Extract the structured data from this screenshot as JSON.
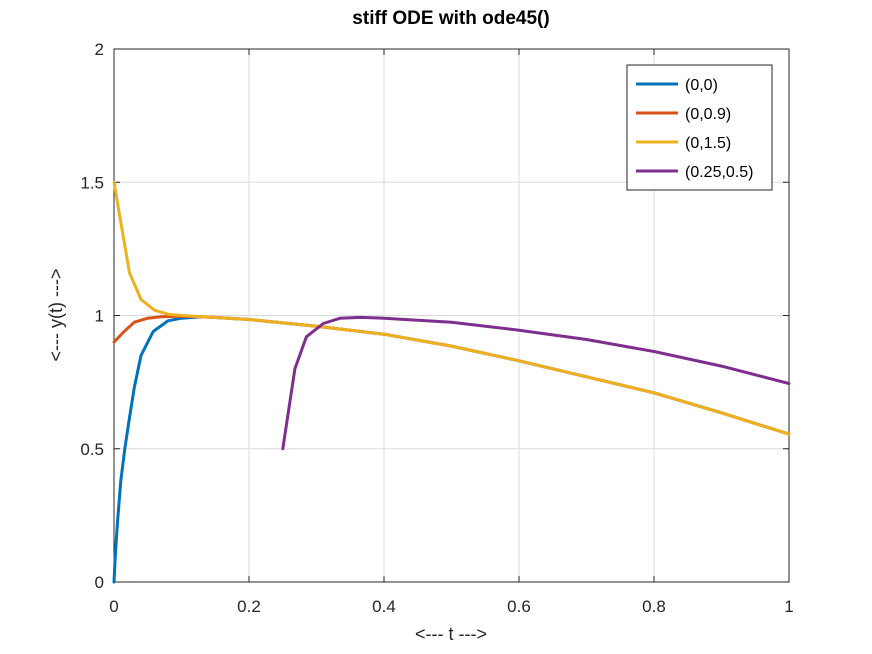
{
  "chart_data": {
    "type": "line",
    "title": "stiff ODE with ode45()",
    "xlabel": "<---  t  --->",
    "ylabel": "<---  y(t)  --->",
    "xlim": [
      0,
      1
    ],
    "ylim": [
      0,
      2
    ],
    "xticks": [
      "0",
      "0.2",
      "0.4",
      "0.6",
      "0.8",
      "1"
    ],
    "yticks": [
      "0",
      "0.5",
      "1",
      "1.5",
      "2"
    ],
    "grid": true,
    "legend_position": "top-right",
    "series": [
      {
        "name": "(0,0)",
        "color": "#0072BD",
        "x": [
          0,
          0.002,
          0.005,
          0.01,
          0.016,
          0.022,
          0.03,
          0.04,
          0.058,
          0.08,
          0.1,
          0.13,
          0.2,
          0.3,
          0.4,
          0.5,
          0.6,
          0.7,
          0.8,
          0.9,
          1.0
        ],
        "y": [
          0,
          0.1,
          0.22,
          0.38,
          0.5,
          0.6,
          0.73,
          0.85,
          0.94,
          0.98,
          0.99,
          0.995,
          0.985,
          0.96,
          0.93,
          0.885,
          0.83,
          0.77,
          0.71,
          0.635,
          0.555
        ]
      },
      {
        "name": "(0,0.9)",
        "color": "#D95319",
        "x": [
          0,
          0.015,
          0.03,
          0.05,
          0.07,
          0.1,
          0.15,
          0.2,
          0.3,
          0.4,
          0.5,
          0.6,
          0.7,
          0.8,
          0.9,
          1.0
        ],
        "y": [
          0.9,
          0.94,
          0.975,
          0.99,
          0.995,
          0.997,
          0.993,
          0.985,
          0.96,
          0.93,
          0.885,
          0.83,
          0.77,
          0.71,
          0.635,
          0.555
        ]
      },
      {
        "name": "(0,1.5)",
        "color": "#EDB120",
        "x": [
          0,
          0.01,
          0.023,
          0.04,
          0.06,
          0.08,
          0.1,
          0.13,
          0.2,
          0.3,
          0.4,
          0.5,
          0.6,
          0.7,
          0.8,
          0.9,
          1.0
        ],
        "y": [
          1.5,
          1.35,
          1.16,
          1.06,
          1.02,
          1.005,
          1.0,
          0.995,
          0.985,
          0.96,
          0.93,
          0.885,
          0.83,
          0.77,
          0.71,
          0.635,
          0.555
        ]
      },
      {
        "name": "(0.25,0.5)",
        "color": "#7E2F8E",
        "x": [
          0.25,
          0.268,
          0.285,
          0.31,
          0.335,
          0.365,
          0.4,
          0.5,
          0.6,
          0.7,
          0.8,
          0.9,
          1.0
        ],
        "y": [
          0.5,
          0.8,
          0.92,
          0.97,
          0.99,
          0.993,
          0.99,
          0.975,
          0.945,
          0.91,
          0.865,
          0.81,
          0.745
        ]
      }
    ]
  }
}
